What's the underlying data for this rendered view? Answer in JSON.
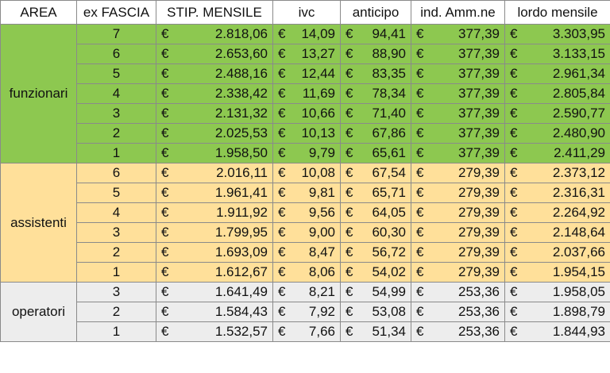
{
  "colors": {
    "green": "#8dc850",
    "yellow": "#ffe09a",
    "gray": "#ededed"
  },
  "headers": [
    "AREA",
    "ex FASCIA",
    "STIP. MENSILE",
    "ivc",
    "anticipo",
    "ind. Amm.ne",
    "lordo mensile"
  ],
  "currency": "€",
  "groups": [
    {
      "area": "funzionari",
      "color_key": "green",
      "rows": [
        {
          "fascia": "7",
          "stip": "2.818,06",
          "ivc": "14,09",
          "anticipo": "94,41",
          "ind": "377,39",
          "lordo": "3.303,95"
        },
        {
          "fascia": "6",
          "stip": "2.653,60",
          "ivc": "13,27",
          "anticipo": "88,90",
          "ind": "377,39",
          "lordo": "3.133,15"
        },
        {
          "fascia": "5",
          "stip": "2.488,16",
          "ivc": "12,44",
          "anticipo": "83,35",
          "ind": "377,39",
          "lordo": "2.961,34"
        },
        {
          "fascia": "4",
          "stip": "2.338,42",
          "ivc": "11,69",
          "anticipo": "78,34",
          "ind": "377,39",
          "lordo": "2.805,84"
        },
        {
          "fascia": "3",
          "stip": "2.131,32",
          "ivc": "10,66",
          "anticipo": "71,40",
          "ind": "377,39",
          "lordo": "2.590,77"
        },
        {
          "fascia": "2",
          "stip": "2.025,53",
          "ivc": "10,13",
          "anticipo": "67,86",
          "ind": "377,39",
          "lordo": "2.480,90"
        },
        {
          "fascia": "1",
          "stip": "1.958,50",
          "ivc": "9,79",
          "anticipo": "65,61",
          "ind": "377,39",
          "lordo": "2.411,29"
        }
      ]
    },
    {
      "area": "assistenti",
      "color_key": "yellow",
      "rows": [
        {
          "fascia": "6",
          "stip": "2.016,11",
          "ivc": "10,08",
          "anticipo": "67,54",
          "ind": "279,39",
          "lordo": "2.373,12"
        },
        {
          "fascia": "5",
          "stip": "1.961,41",
          "ivc": "9,81",
          "anticipo": "65,71",
          "ind": "279,39",
          "lordo": "2.316,31"
        },
        {
          "fascia": "4",
          "stip": "1.911,92",
          "ivc": "9,56",
          "anticipo": "64,05",
          "ind": "279,39",
          "lordo": "2.264,92"
        },
        {
          "fascia": "3",
          "stip": "1.799,95",
          "ivc": "9,00",
          "anticipo": "60,30",
          "ind": "279,39",
          "lordo": "2.148,64"
        },
        {
          "fascia": "2",
          "stip": "1.693,09",
          "ivc": "8,47",
          "anticipo": "56,72",
          "ind": "279,39",
          "lordo": "2.037,66"
        },
        {
          "fascia": "1",
          "stip": "1.612,67",
          "ivc": "8,06",
          "anticipo": "54,02",
          "ind": "279,39",
          "lordo": "1.954,15"
        }
      ]
    },
    {
      "area": "operatori",
      "color_key": "gray",
      "rows": [
        {
          "fascia": "3",
          "stip": "1.641,49",
          "ivc": "8,21",
          "anticipo": "54,99",
          "ind": "253,36",
          "lordo": "1.958,05"
        },
        {
          "fascia": "2",
          "stip": "1.584,43",
          "ivc": "7,92",
          "anticipo": "53,08",
          "ind": "253,36",
          "lordo": "1.898,79"
        },
        {
          "fascia": "1",
          "stip": "1.532,57",
          "ivc": "7,66",
          "anticipo": "51,34",
          "ind": "253,36",
          "lordo": "1.844,93"
        }
      ]
    }
  ]
}
